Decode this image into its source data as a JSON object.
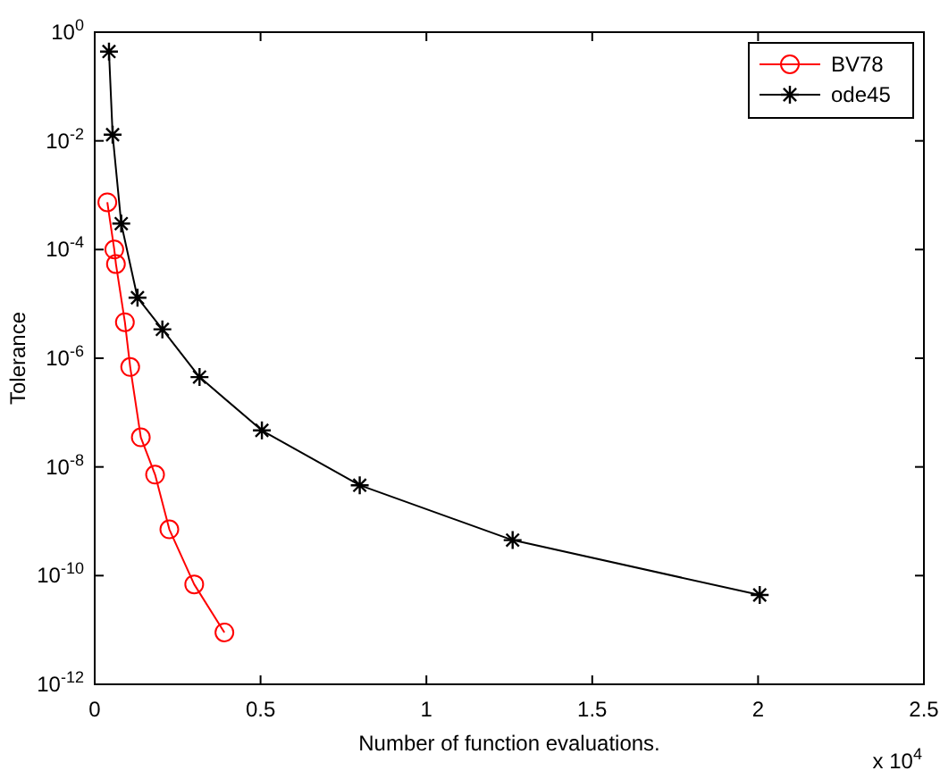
{
  "chart_data": {
    "type": "line",
    "xlabel": "Number of function evaluations.",
    "ylabel": "Tolerance",
    "log": "y",
    "xlim": [
      0,
      2.5
    ],
    "xticks": [
      0,
      0.5,
      1,
      1.5,
      2,
      2.5
    ],
    "ylim": [
      1e-12,
      1
    ],
    "yticks": [
      {
        "value": 1e-12,
        "label": "10$^{-12}$"
      },
      {
        "value": 1e-10,
        "label": "10$^{-10}$"
      },
      {
        "value": 1e-08,
        "label": "10$^{-8}$"
      },
      {
        "value": 1e-06,
        "label": "10$^{-6}$"
      },
      {
        "value": 0.0001,
        "label": "10$^{-4}$"
      },
      {
        "value": 0.01,
        "label": "10$^{-2}$"
      },
      {
        "value": 1,
        "label": "10$^{0}$"
      }
    ],
    "annotations": [
      "x 10$^{4}$"
    ],
    "legend": "top right",
    "grid": false,
    "series": [
      {
        "name": "BV78",
        "color": "#ff0000",
        "marker": "circle",
        "x": [
          0.038,
          0.059,
          0.064,
          0.091,
          0.107,
          0.139,
          0.182,
          0.225,
          0.3,
          0.391
        ],
        "values": [
          0.00074,
          0.0001,
          5.4e-05,
          4.6e-06,
          6.9e-07,
          3.5e-08,
          7.2e-09,
          7.1e-10,
          6.9e-11,
          9e-12
        ]
      },
      {
        "name": "ode45",
        "color": "#000000",
        "marker": "cross",
        "x": [
          0.043,
          0.054,
          0.08,
          0.129,
          0.204,
          0.316,
          0.504,
          0.799,
          1.26,
          2.005
        ],
        "values": [
          0.44,
          0.013,
          0.0003,
          1.3e-05,
          3.4e-06,
          4.5e-07,
          4.7e-08,
          4.6e-09,
          4.5e-10,
          4.4e-11
        ]
      }
    ]
  }
}
